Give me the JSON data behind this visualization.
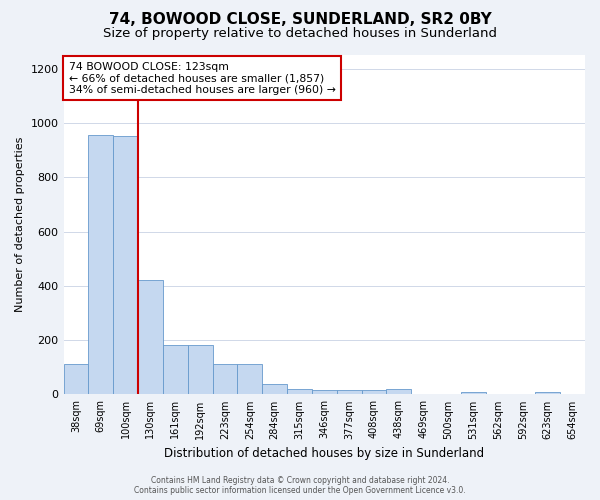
{
  "title": "74, BOWOOD CLOSE, SUNDERLAND, SR2 0BY",
  "subtitle": "Size of property relative to detached houses in Sunderland",
  "xlabel": "Distribution of detached houses by size in Sunderland",
  "ylabel": "Number of detached properties",
  "categories": [
    "38sqm",
    "69sqm",
    "100sqm",
    "130sqm",
    "161sqm",
    "192sqm",
    "223sqm",
    "254sqm",
    "284sqm",
    "315sqm",
    "346sqm",
    "377sqm",
    "408sqm",
    "438sqm",
    "469sqm",
    "500sqm",
    "531sqm",
    "562sqm",
    "592sqm",
    "623sqm",
    "654sqm"
  ],
  "values": [
    113,
    955,
    950,
    420,
    182,
    182,
    113,
    113,
    40,
    20,
    15,
    15,
    15,
    20,
    0,
    0,
    10,
    0,
    0,
    10,
    0
  ],
  "bar_color": "#c5d8f0",
  "bar_edge_color": "#6699cc",
  "vline_color": "#cc0000",
  "annotation_text": "74 BOWOOD CLOSE: 123sqm\n← 66% of detached houses are smaller (1,857)\n34% of semi-detached houses are larger (960) →",
  "annotation_box_color": "#cc0000",
  "ylim": [
    0,
    1250
  ],
  "yticks": [
    0,
    200,
    400,
    600,
    800,
    1000,
    1200
  ],
  "footer_line1": "Contains HM Land Registry data © Crown copyright and database right 2024.",
  "footer_line2": "Contains public sector information licensed under the Open Government Licence v3.0.",
  "background_color": "#eef2f8",
  "plot_bg_color": "#ffffff",
  "title_fontsize": 11,
  "subtitle_fontsize": 9.5,
  "grid_color": "#d0d8e8"
}
